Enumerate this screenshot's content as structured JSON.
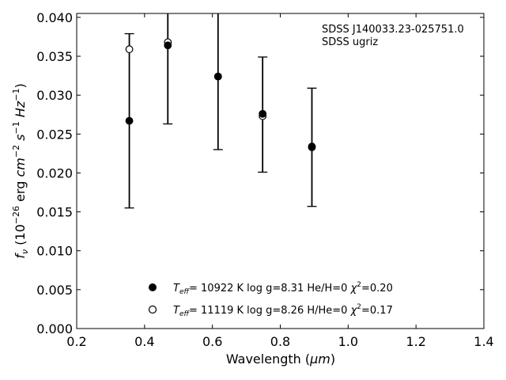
{
  "chart_data": {
    "type": "scatter",
    "xlabel_main": "Wavelength (",
    "xlabel_unit": "μm",
    "xlabel_close": ")",
    "ylabel_f": "f",
    "ylabel_sub": "ν",
    "ylabel_open": " (10",
    "ylabel_exp1": "−26",
    "ylabel_erg": " erg ",
    "ylabel_cm": "cm",
    "ylabel_exp2": "−2",
    "ylabel_s": " s",
    "ylabel_exp3": "−1",
    "ylabel_hz": " Hz",
    "ylabel_exp4": "−1",
    "ylabel_close": ")",
    "xlim": [
      0.2,
      1.4
    ],
    "ylim": [
      0.0,
      0.0405
    ],
    "xticks": [
      0.2,
      0.4,
      0.6,
      0.8,
      1.0,
      1.2,
      1.4
    ],
    "xtick_labels": [
      "0.2",
      "0.4",
      "0.6",
      "0.8",
      "1.0",
      "1.2",
      "1.4"
    ],
    "yticks": [
      0.0,
      0.005,
      0.01,
      0.015,
      0.02,
      0.025,
      0.03,
      0.035,
      0.04
    ],
    "ytick_labels": [
      "0.000",
      "0.005",
      "0.010",
      "0.015",
      "0.020",
      "0.025",
      "0.030",
      "0.035",
      "0.040"
    ],
    "annotation": [
      "SDSS J140033.23-025751.0",
      "SDSS ugriz"
    ],
    "observed": {
      "x": [
        0.3551,
        0.4686,
        0.6166,
        0.748,
        0.8932
      ],
      "y": [
        0.0267,
        0.0364,
        0.0324,
        0.0275,
        0.0233
      ],
      "yerr": [
        0.0112,
        0.0101,
        0.0094,
        0.0074,
        0.0076
      ]
    },
    "series": [
      {
        "marker": "filled",
        "label_T": "T",
        "label_eff": "eff",
        "label_rest": "= 10922 K  log g=8.31  He/H=0  ",
        "label_chi": "χ",
        "label_chi_exp": "2",
        "label_chi_val": "=0.20",
        "x": [
          0.3551,
          0.4686,
          0.6166,
          0.748,
          0.8932
        ],
        "y": [
          0.0267,
          0.0364,
          0.0324,
          0.0276,
          0.0234
        ]
      },
      {
        "marker": "open",
        "label_T": "T",
        "label_eff": "eff",
        "label_rest": "= 11119 K  log g=8.26  H/He=0  ",
        "label_chi": "χ",
        "label_chi_exp": "2",
        "label_chi_val": "=0.17",
        "x": [
          0.3551,
          0.4686,
          0.6166,
          0.748,
          0.8932
        ],
        "y": [
          0.0359,
          0.0368,
          0.0324,
          0.0273,
          0.0233
        ]
      }
    ],
    "legend_position": "lower-center",
    "grid": false
  }
}
